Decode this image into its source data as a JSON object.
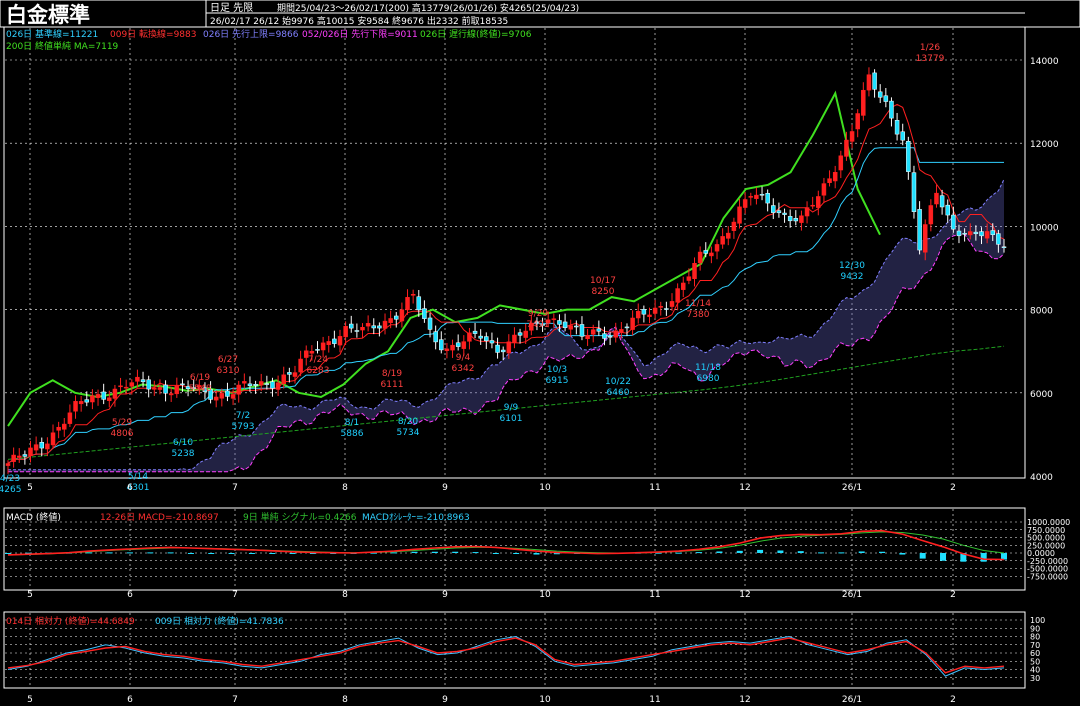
{
  "header": {
    "title": "白金標準",
    "mode": "日足 先限",
    "period_line": "期間25/04/23〜26/02/17(200) 高13779(26/01/26) 安4265(25/04/23)",
    "ohlc_line": "26/02/17 26/12 始9976 高10015 安9584 終9676 出2332 前取18535"
  },
  "legend_main": {
    "l1": "026日 基準線=11221",
    "l2": "009日 転換線=9883",
    "l3": "026日 先行上限=9866",
    "l4": "052/026日 先行下限=9011",
    "l5": "026日 遅行線(終値)=9706",
    "l6": "200日 終値単純 MA=7119"
  },
  "legend_macd": {
    "l1": "MACD (終値)",
    "l2": "12-26日 MACD=-210.8697",
    "l3": "9日 単純 シグナル=0.4266",
    "l4": "MACDｵｼﾚｰﾀｰ=-210.8963"
  },
  "legend_rsi": {
    "l1": "014日 相対力 (終値)=44.6849",
    "l2": "009日 相対力 (終値)=41.7836"
  },
  "colors": {
    "bg": "#000000",
    "up": "#ff2020",
    "down": "#20e0ff",
    "kijun": "#30d0ff",
    "tenkan": "#ff2020",
    "lagging": "#40e020",
    "ma200": "#20a020",
    "cloud_a": "#8080ff",
    "cloud_b": "#ff40ff",
    "macd": "#ff2020",
    "signal": "#30c030",
    "histogram": "#20e0ff",
    "rsi14": "#ff2020",
    "rsi9": "#40c0ff",
    "label_text": "#ff4040",
    "low_text": "#20d0ff"
  },
  "chart_data": [
    {
      "type": "candlestick",
      "title": "白金標準",
      "ylim": [
        4000,
        14500
      ],
      "y_ticks": [
        4000,
        6000,
        8000,
        10000,
        12000,
        14000
      ],
      "x_tick_labels": [
        "5",
        "6",
        "7",
        "8",
        "9",
        "10",
        "11",
        "12",
        "26/1",
        "2"
      ],
      "grid": true,
      "price_path": [
        4300,
        4450,
        4800,
        5200,
        5600,
        5900,
        6050,
        6150,
        6200,
        6150,
        6100,
        6050,
        6000,
        6000,
        6100,
        6200,
        6350,
        6500,
        7000,
        7300,
        7500,
        7450,
        7700,
        7900,
        8250,
        7450,
        7100,
        7200,
        7350,
        7100,
        7300,
        7500,
        7850,
        7700,
        7300,
        7450,
        7500,
        7700,
        7900,
        8200,
        8600,
        9200,
        9600,
        10200,
        10700,
        10600,
        10300,
        10100,
        10700,
        11500,
        12300,
        13500,
        13000,
        12100,
        9400,
        10900,
        10000,
        9700,
        9800,
        9676
      ],
      "ma200": [
        4400,
        4460,
        4520,
        4580,
        4640,
        4700,
        4760,
        4820,
        4880,
        4940,
        5000,
        5060,
        5120,
        5180,
        5240,
        5300,
        5360,
        5420,
        5480,
        5540,
        5600,
        5660,
        5720,
        5780,
        5840,
        5900,
        5960,
        6020,
        6080,
        6150,
        6230,
        6320,
        6420,
        6520,
        6620,
        6720,
        6820,
        6920,
        7000,
        7050,
        7119
      ],
      "lagging_span": [
        5200,
        6000,
        6300,
        6000,
        5900,
        6000,
        6200,
        6150,
        6050,
        6100,
        6000,
        6150,
        6300,
        6000,
        5900,
        6200,
        6700,
        7000,
        7800,
        8000,
        7700,
        7800,
        8100,
        8000,
        7900,
        8000,
        8000,
        8300,
        8200,
        8500,
        8800,
        9100,
        10200,
        10900,
        11000,
        11300,
        12200,
        13200,
        10900,
        9800
      ],
      "annotations": {
        "highs": [
          {
            "text": "5/29",
            "value": "4806"
          },
          {
            "text": "6/19",
            "value": "5548"
          },
          {
            "text": "6/27",
            "value": "6310"
          },
          {
            "text": "7/24",
            "value": "6283"
          },
          {
            "text": "8/19",
            "value": "6111"
          },
          {
            "text": "9/4",
            "value": "6342"
          },
          {
            "text": "9/29",
            "value": "7491"
          },
          {
            "text": "10/17",
            "value": "8250"
          },
          {
            "text": "11/14",
            "value": "7380"
          },
          {
            "text": "1/26",
            "value": "13779"
          }
        ],
        "lows": [
          {
            "text": "4/23",
            "value": "4265"
          },
          {
            "text": "5/14",
            "value": "4301"
          },
          {
            "text": "6/10",
            "value": "5238"
          },
          {
            "text": "7/2",
            "value": "5793"
          },
          {
            "text": "8/1",
            "value": "5886"
          },
          {
            "text": "8/20",
            "value": "5734"
          },
          {
            "text": "9/9",
            "value": "6101"
          },
          {
            "text": "10/3",
            "value": "6915"
          },
          {
            "text": "10/22",
            "value": "6460"
          },
          {
            "text": "11/18",
            "value": "6980"
          },
          {
            "text": "12/30",
            "value": "9432"
          }
        ]
      }
    },
    {
      "type": "line",
      "title": "MACD (終値)",
      "ylim": [
        -750,
        1000
      ],
      "y_ticks": [
        1000,
        750,
        500,
        250,
        0,
        -250,
        -500,
        -750
      ],
      "y_tick_labels": [
        "1000.0000",
        "750.0000",
        "500.0000",
        "250.0000",
        "0.0000",
        "-250.0000",
        "-500.0000",
        "-750.0000"
      ],
      "macd": [
        -60,
        -40,
        -20,
        10,
        60,
        100,
        130,
        160,
        180,
        160,
        140,
        120,
        100,
        70,
        40,
        20,
        10,
        0,
        30,
        60,
        120,
        160,
        200,
        210,
        180,
        120,
        60,
        20,
        0,
        -20,
        -10,
        10,
        30,
        60,
        120,
        200,
        320,
        480,
        560,
        600,
        590,
        620,
        700,
        720,
        610,
        400,
        200,
        -30,
        -200,
        -211
      ],
      "signal": [
        -60,
        -50,
        -30,
        0,
        40,
        80,
        110,
        140,
        160,
        160,
        150,
        130,
        110,
        80,
        60,
        40,
        20,
        10,
        20,
        40,
        80,
        120,
        160,
        180,
        180,
        150,
        110,
        60,
        30,
        10,
        0,
        0,
        20,
        50,
        90,
        150,
        250,
        380,
        480,
        540,
        570,
        600,
        650,
        680,
        660,
        580,
        450,
        250,
        80,
        0
      ],
      "histogram": [
        0,
        10,
        10,
        10,
        20,
        20,
        20,
        20,
        20,
        0,
        -10,
        -10,
        -10,
        -10,
        -20,
        -20,
        -10,
        -10,
        10,
        20,
        40,
        40,
        40,
        30,
        0,
        -30,
        -50,
        -40,
        -30,
        -30,
        -10,
        10,
        10,
        10,
        30,
        50,
        70,
        100,
        80,
        60,
        20,
        20,
        50,
        40,
        -50,
        -180,
        -250,
        -280,
        -280,
        -211
      ]
    },
    {
      "type": "line",
      "title": "相対力",
      "ylim": [
        20,
        100
      ],
      "y_ticks": [
        100,
        90,
        80,
        70,
        60,
        50,
        40,
        30
      ],
      "rsi14": [
        42,
        45,
        50,
        58,
        62,
        66,
        68,
        62,
        58,
        56,
        52,
        50,
        46,
        44,
        48,
        52,
        56,
        60,
        68,
        72,
        75,
        68,
        60,
        62,
        66,
        74,
        78,
        70,
        52,
        46,
        48,
        50,
        54,
        58,
        62,
        66,
        70,
        72,
        70,
        74,
        78,
        72,
        66,
        60,
        64,
        70,
        74,
        60,
        36,
        44,
        42,
        44
      ],
      "rsi9": [
        40,
        44,
        52,
        60,
        64,
        70,
        66,
        60,
        56,
        54,
        50,
        48,
        44,
        42,
        46,
        50,
        58,
        62,
        70,
        74,
        78,
        66,
        58,
        60,
        68,
        76,
        80,
        68,
        50,
        44,
        46,
        48,
        52,
        56,
        64,
        68,
        72,
        74,
        72,
        76,
        80,
        70,
        64,
        58,
        62,
        72,
        76,
        58,
        32,
        42,
        40,
        42
      ]
    }
  ]
}
